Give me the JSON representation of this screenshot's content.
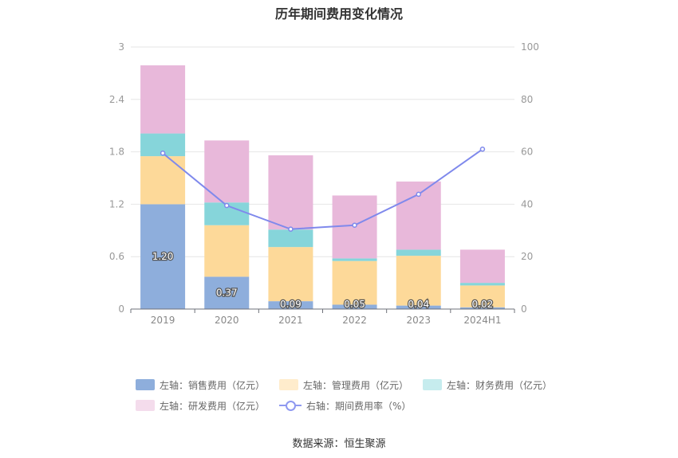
{
  "chart_data": {
    "type": "bar",
    "title": "历年期间费用变化情况",
    "categories": [
      "2019",
      "2020",
      "2021",
      "2022",
      "2023",
      "2024H1"
    ],
    "left_axis": {
      "ylim": [
        0,
        3
      ],
      "ticks": [
        "0",
        "0.6",
        "1.2",
        "1.8",
        "2.4",
        "3"
      ]
    },
    "right_axis": {
      "ylim": [
        0,
        100
      ],
      "ticks": [
        "0",
        "20",
        "40",
        "60",
        "80",
        "100"
      ]
    },
    "series": [
      {
        "name": "左轴：销售费用（亿元）",
        "axis": "left",
        "stack": true,
        "color": "#8eaedc",
        "values": [
          1.2,
          0.37,
          0.09,
          0.05,
          0.04,
          0.02
        ],
        "labels": [
          "1.20",
          "0.37",
          "0.09",
          "0.05",
          "0.04",
          "0.02"
        ]
      },
      {
        "name": "左轴：管理费用（亿元）",
        "axis": "left",
        "stack": true,
        "color": "#fdd999",
        "values": [
          0.55,
          0.59,
          0.62,
          0.5,
          0.57,
          0.25
        ]
      },
      {
        "name": "左轴：财务费用（亿元）",
        "axis": "left",
        "stack": true,
        "color": "#86d5da",
        "values": [
          0.26,
          0.26,
          0.2,
          0.03,
          0.07,
          0.03
        ]
      },
      {
        "name": "左轴：研发费用（亿元）",
        "axis": "left",
        "stack": true,
        "color": "#e8b8da",
        "values": [
          0.78,
          0.71,
          0.85,
          0.72,
          0.78,
          0.38
        ]
      },
      {
        "name": "右轴：期间费用率（%）",
        "axis": "right",
        "type": "line",
        "color": "#7f89ec",
        "values": [
          59.5,
          39.5,
          30.5,
          32.0,
          43.8,
          61.0
        ]
      }
    ],
    "grid": true,
    "legend_position": "bottom"
  },
  "legend": {
    "rows": [
      [
        {
          "label": "左轴：销售费用（亿元）",
          "color": "#8eaedc",
          "kind": "box"
        },
        {
          "label": "左轴：管理费用（亿元）",
          "color": "#ffeccc",
          "kind": "box"
        },
        {
          "label": "左轴：财务费用（亿元）",
          "color": "#c6ecee",
          "kind": "box"
        }
      ],
      [
        {
          "label": "左轴：研发费用（亿元）",
          "color": "#f4dcec",
          "kind": "box"
        },
        {
          "label": "右轴：期间费用率（%）",
          "color": "#8f99f0",
          "kind": "line"
        }
      ]
    ]
  },
  "source": "数据来源：恒生聚源"
}
